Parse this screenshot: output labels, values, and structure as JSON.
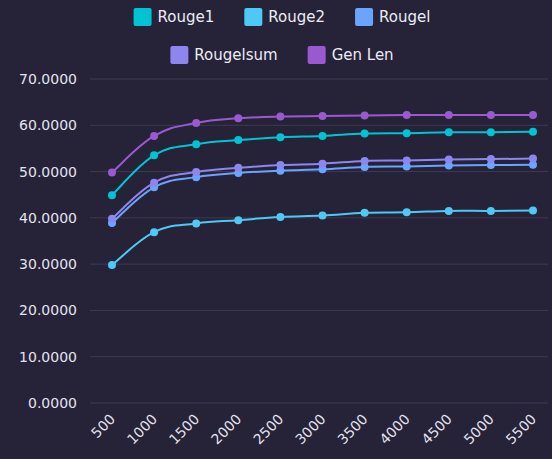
{
  "chart_data": {
    "type": "line",
    "categories": [
      "500",
      "1000",
      "1500",
      "2000",
      "2500",
      "3000",
      "3500",
      "4000",
      "4500",
      "5000",
      "5500"
    ],
    "series": [
      {
        "name": "Rouge1",
        "color": "#00c4d4",
        "values": [
          44.9,
          53.5,
          55.9,
          56.8,
          57.4,
          57.7,
          58.2,
          58.3,
          58.5,
          58.5,
          58.6
        ]
      },
      {
        "name": "Rouge2",
        "color": "#4ec8f4",
        "values": [
          29.8,
          36.9,
          38.8,
          39.5,
          40.2,
          40.5,
          41.1,
          41.2,
          41.5,
          41.5,
          41.6
        ]
      },
      {
        "name": "Rougel",
        "color": "#6aa4ff",
        "values": [
          38.9,
          46.6,
          48.8,
          49.7,
          50.2,
          50.5,
          51.0,
          51.1,
          51.3,
          51.4,
          51.5
        ]
      },
      {
        "name": "Rougelsum",
        "color": "#8d86ee",
        "values": [
          39.8,
          47.6,
          49.9,
          50.8,
          51.4,
          51.7,
          52.3,
          52.4,
          52.6,
          52.7,
          52.8
        ]
      },
      {
        "name": "Gen Len",
        "color": "#9b59d0",
        "values": [
          49.8,
          57.7,
          60.5,
          61.5,
          61.9,
          62.0,
          62.1,
          62.2,
          62.2,
          62.2,
          62.2
        ]
      }
    ],
    "ylim": [
      0,
      70
    ],
    "yticks": [
      {
        "value": 0,
        "label": "0.0000"
      },
      {
        "value": 10,
        "label": "10.0000"
      },
      {
        "value": 20,
        "label": "20.0000"
      },
      {
        "value": 30,
        "label": "30.0000"
      },
      {
        "value": 40,
        "label": "40.0000"
      },
      {
        "value": 50,
        "label": "50.0000"
      },
      {
        "value": 60,
        "label": "60.0000"
      },
      {
        "value": 70,
        "label": "70.0000"
      }
    ],
    "grid": true,
    "legend": "top",
    "marker": "circle",
    "line_style": "smooth"
  }
}
